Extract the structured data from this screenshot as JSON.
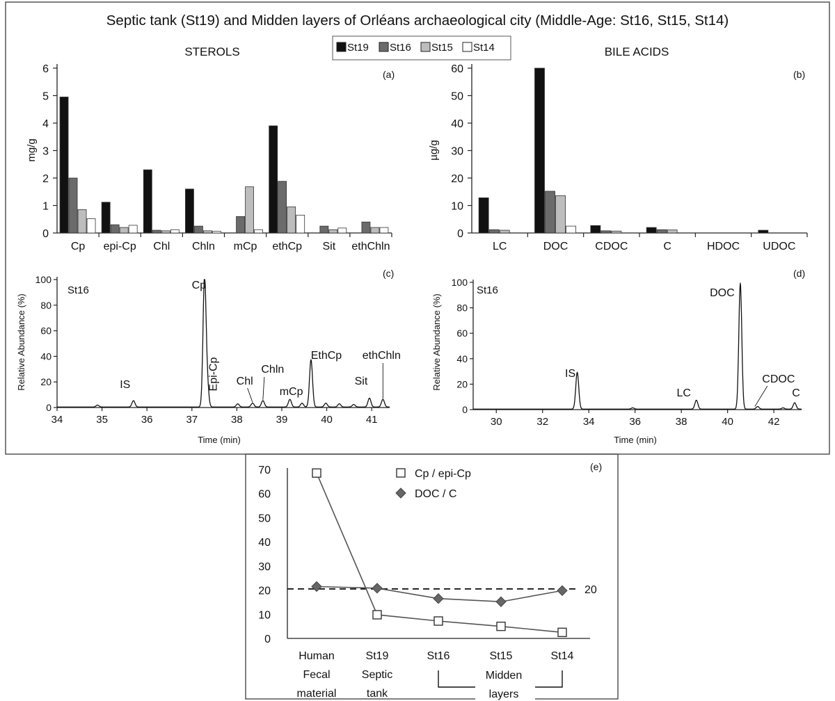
{
  "figure_title": "Septic tank (St19) and Midden layers of Orléans archaeological city (Middle-Age: St16, St15, St14)",
  "legend_top": [
    {
      "name": "St19",
      "color": "#111111"
    },
    {
      "name": "St16",
      "color": "#6b6b6b"
    },
    {
      "name": "St15",
      "color": "#bdbdbd"
    },
    {
      "name": "St14",
      "color": "#ffffff"
    }
  ],
  "chart_data": [
    {
      "id": "a",
      "panel_label": "(a)",
      "type": "bar",
      "title": "STEROLS",
      "ylabel": "mg/g",
      "ylim": [
        0,
        6
      ],
      "yticks": [
        0,
        1,
        2,
        3,
        4,
        5,
        6
      ],
      "categories": [
        "Cp",
        "epi-Cp",
        "Chl",
        "Chln",
        "mCp",
        "ethCp",
        "Sit",
        "ethChln"
      ],
      "series": [
        {
          "name": "St19",
          "values": [
            4.95,
            1.12,
            2.3,
            1.6,
            0,
            3.9,
            0,
            0
          ]
        },
        {
          "name": "St16",
          "values": [
            2.0,
            0.3,
            0.1,
            0.25,
            0.6,
            1.88,
            0.25,
            0.4
          ]
        },
        {
          "name": "St15",
          "values": [
            0.85,
            0.2,
            0.08,
            0.08,
            1.68,
            0.95,
            0.12,
            0.2
          ]
        },
        {
          "name": "St14",
          "values": [
            0.52,
            0.28,
            0.12,
            0.06,
            0.12,
            0.65,
            0.18,
            0.2
          ]
        }
      ]
    },
    {
      "id": "b",
      "panel_label": "(b)",
      "type": "bar",
      "title": "BILE ACIDS",
      "ylabel": "µg/g",
      "ylim": [
        0,
        60
      ],
      "yticks": [
        0,
        10,
        20,
        30,
        40,
        50,
        60
      ],
      "categories": [
        "LC",
        "DOC",
        "CDOC",
        "C",
        "HDOC",
        "UDOC"
      ],
      "series": [
        {
          "name": "St19",
          "values": [
            12.8,
            60,
            2.7,
            2.0,
            0,
            1.0
          ]
        },
        {
          "name": "St16",
          "values": [
            1.2,
            15.2,
            0.8,
            1.2,
            0,
            0
          ]
        },
        {
          "name": "St15",
          "values": [
            1.0,
            13.6,
            0.7,
            1.1,
            0,
            0
          ]
        },
        {
          "name": "St14",
          "values": [
            0,
            2.5,
            0,
            0,
            0,
            0
          ]
        }
      ]
    },
    {
      "id": "c",
      "panel_label": "(c)",
      "type": "line",
      "sample": "St16",
      "ylabel": "Relative Abundance (%)",
      "xlabel": "Time (min)",
      "xlim": [
        34,
        41.4
      ],
      "ylim": [
        0,
        100
      ],
      "xticks": [
        34,
        35,
        36,
        37,
        38,
        39,
        40,
        41
      ],
      "yticks": [
        0,
        20,
        40,
        60,
        80,
        100
      ],
      "peaks": [
        {
          "label": "IS",
          "x": 35.7,
          "y": 5
        },
        {
          "label": "",
          "x": 34.9,
          "y": 1.5
        },
        {
          "label": "Cp",
          "x": 37.28,
          "y": 100
        },
        {
          "label": "Epi-Cp",
          "x": 37.34,
          "y": 18
        },
        {
          "label": "Chl",
          "x": 38.02,
          "y": 2.5
        },
        {
          "label": "",
          "x": 38.35,
          "y": 3
        },
        {
          "label": "Chln",
          "x": 38.58,
          "y": 5
        },
        {
          "label": "mCp",
          "x": 39.18,
          "y": 6
        },
        {
          "label": "",
          "x": 39.45,
          "y": 3
        },
        {
          "label": "EthCp",
          "x": 39.65,
          "y": 37
        },
        {
          "label": "",
          "x": 39.98,
          "y": 3
        },
        {
          "label": "",
          "x": 40.28,
          "y": 2.5
        },
        {
          "label": "",
          "x": 40.6,
          "y": 2
        },
        {
          "label": "Sit",
          "x": 40.95,
          "y": 7
        },
        {
          "label": "ethChln",
          "x": 41.25,
          "y": 6
        }
      ]
    },
    {
      "id": "d",
      "panel_label": "(d)",
      "type": "line",
      "sample": "St16",
      "ylabel": "Relative Abundance (%)",
      "xlabel": "Time (min)",
      "xlim": [
        29,
        43.2
      ],
      "ylim": [
        0,
        100
      ],
      "xticks": [
        30,
        32,
        34,
        36,
        38,
        40,
        42
      ],
      "yticks": [
        0,
        20,
        40,
        60,
        80,
        100
      ],
      "peaks": [
        {
          "label": "IS",
          "x": 33.5,
          "y": 29
        },
        {
          "label": "",
          "x": 35.9,
          "y": 1
        },
        {
          "label": "LC",
          "x": 38.65,
          "y": 7
        },
        {
          "label": "DOC",
          "x": 40.55,
          "y": 99
        },
        {
          "label": "CDOC",
          "x": 41.3,
          "y": 2
        },
        {
          "label": "",
          "x": 42.4,
          "y": 1
        },
        {
          "label": "C",
          "x": 42.9,
          "y": 5
        }
      ]
    },
    {
      "id": "e",
      "panel_label": "(e)",
      "type": "line",
      "ylim": [
        0,
        70
      ],
      "yticks": [
        0,
        10,
        20,
        30,
        40,
        50,
        60,
        70
      ],
      "categories": [
        [
          "Human",
          "Fecal",
          "material"
        ],
        [
          "St19",
          "Septic",
          "tank"
        ],
        [
          "St16"
        ],
        [
          "St15"
        ],
        [
          "St14"
        ]
      ],
      "bracket_label": [
        "Midden",
        "layers"
      ],
      "series": [
        {
          "name": "Cp / epi-Cp",
          "marker": "square",
          "values": [
            68.5,
            9.8,
            7.2,
            5.0,
            2.5
          ]
        },
        {
          "name": "DOC / C",
          "marker": "diamond",
          "values": [
            21.5,
            20.8,
            16.5,
            15.2,
            19.8
          ]
        }
      ],
      "reference_line": {
        "y": 20.5,
        "label": "20"
      }
    }
  ]
}
